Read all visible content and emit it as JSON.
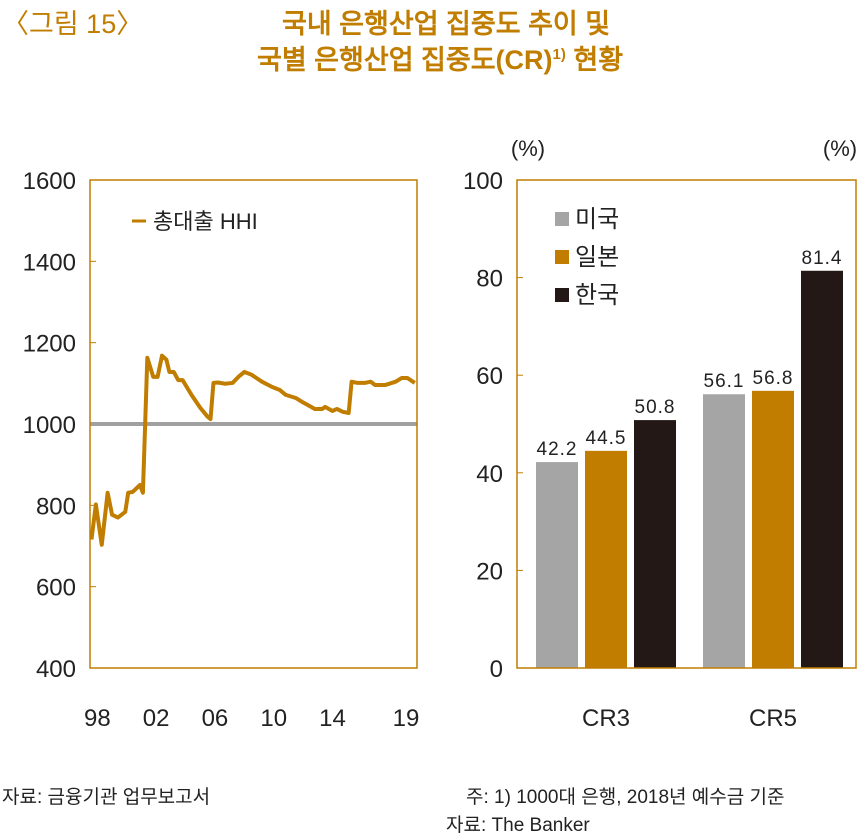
{
  "figure_label": "〈그림 15〉",
  "title_line1": "국내 은행산업 집중도 추이 및",
  "title_line2": "국별 은행산업 집중도(CR)",
  "title_sup": "1)",
  "title_line2_end": " 현황",
  "footer": {
    "left_source": "자료: 금융기관 업무보고서",
    "note": "주: 1) 1000대 은행, 2018년 예수금 기준",
    "right_source": "자료: The Banker"
  },
  "colors": {
    "accent": "#c07d00",
    "us": "#a5a5a5",
    "japan": "#c07d00",
    "korea": "#231815",
    "reference": "#a0a0a0"
  },
  "chart_data": [
    {
      "type": "line",
      "title": "",
      "ylim": [
        400,
        1600
      ],
      "yticks": [
        400,
        600,
        800,
        1000,
        1200,
        1400,
        1600
      ],
      "xlim": [
        1997.5,
        2019.75
      ],
      "xticks": [
        {
          "value": 1998,
          "label": "98"
        },
        {
          "value": 2002,
          "label": "02"
        },
        {
          "value": 2006,
          "label": "06"
        },
        {
          "value": 2010,
          "label": "10"
        },
        {
          "value": 2014,
          "label": "14"
        },
        {
          "value": 2019,
          "label": "19"
        }
      ],
      "reference_line": 1000,
      "legend_position": "top-left",
      "series": [
        {
          "name": "총대출 HHI",
          "x": [
            1997.6,
            1997.9,
            1998.3,
            1998.7,
            1999.0,
            1999.4,
            1999.9,
            2000.1,
            2000.4,
            2000.9,
            2001.1,
            2001.4,
            2001.8,
            2002.1,
            2002.4,
            2002.7,
            2002.9,
            2003.2,
            2003.5,
            2003.8,
            2004.4,
            2005.0,
            2005.5,
            2005.7,
            2005.9,
            2006.2,
            2006.7,
            2007.2,
            2007.6,
            2008.0,
            2008.5,
            2009.2,
            2009.9,
            2010.4,
            2010.8,
            2011.5,
            2011.9,
            2012.3,
            2012.8,
            2013.3,
            2013.5,
            2014.0,
            2014.3,
            2014.7,
            2015.1,
            2015.3,
            2015.7,
            2016.2,
            2016.6,
            2016.9,
            2017.6,
            2018.3,
            2018.7,
            2019.1,
            2019.6
          ],
          "y": [
            716,
            802,
            703,
            831,
            777,
            770,
            784,
            831,
            833,
            850,
            831,
            1163,
            1116,
            1116,
            1168,
            1158,
            1128,
            1128,
            1108,
            1108,
            1072,
            1040,
            1018,
            1012,
            1101,
            1102,
            1099,
            1101,
            1116,
            1128,
            1121,
            1104,
            1091,
            1084,
            1072,
            1064,
            1055,
            1047,
            1037,
            1037,
            1042,
            1032,
            1037,
            1030,
            1027,
            1104,
            1101,
            1101,
            1104,
            1096,
            1096,
            1104,
            1113,
            1113,
            1101
          ]
        }
      ]
    },
    {
      "type": "bar",
      "title": "",
      "unit_left": "(%)",
      "unit_right": "(%)",
      "ylim": [
        0,
        100
      ],
      "yticks": [
        0,
        20,
        40,
        60,
        80,
        100
      ],
      "categories": [
        "CR3",
        "CR5"
      ],
      "legend_position": "top-left",
      "series": [
        {
          "name": "미국",
          "values": [
            42.2,
            56.1
          ],
          "labels": [
            "42.2",
            "56.1"
          ]
        },
        {
          "name": "일본",
          "values": [
            44.5,
            56.8
          ],
          "labels": [
            "44.5",
            "56.8"
          ]
        },
        {
          "name": "한국",
          "values": [
            50.8,
            81.4
          ],
          "labels": [
            "50.8",
            "81.4"
          ]
        }
      ]
    }
  ]
}
